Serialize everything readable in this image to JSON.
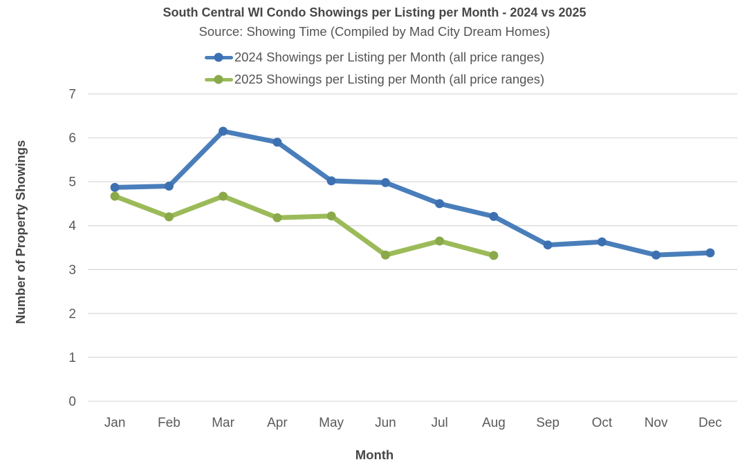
{
  "chart_data": {
    "type": "line",
    "title": "South Central WI Condo Showings per Listing per Month - 2024 vs 2025",
    "subtitle": "Source: Showing Time (Compiled by Mad City Dream Homes)",
    "xlabel": "Month",
    "ylabel": "Number of Property Showings",
    "categories": [
      "Jan",
      "Feb",
      "Mar",
      "Apr",
      "May",
      "Jun",
      "Jul",
      "Aug",
      "Sep",
      "Oct",
      "Nov",
      "Dec"
    ],
    "y_ticks": [
      0,
      1,
      2,
      3,
      4,
      5,
      6,
      7
    ],
    "ylim": [
      0,
      7
    ],
    "grid": true,
    "legend_position": "top",
    "series": [
      {
        "name": "2024 Showings per Listing per Month (all price ranges)",
        "color": "#4a7ebb",
        "marker_color": "#3d70b0",
        "values": [
          4.87,
          4.9,
          6.15,
          5.9,
          5.02,
          4.98,
          4.5,
          4.21,
          3.56,
          3.63,
          3.33,
          3.38
        ]
      },
      {
        "name": "2025 Showings per Listing per Month (all price ranges)",
        "color": "#9bbb59",
        "marker_color": "#8aa94a",
        "values": [
          4.67,
          4.2,
          4.67,
          4.18,
          4.22,
          3.33,
          3.65,
          3.32
        ]
      }
    ]
  },
  "colors": {
    "grid": "#d9d9d9",
    "tick_text": "#595959",
    "title_text": "#474747"
  }
}
